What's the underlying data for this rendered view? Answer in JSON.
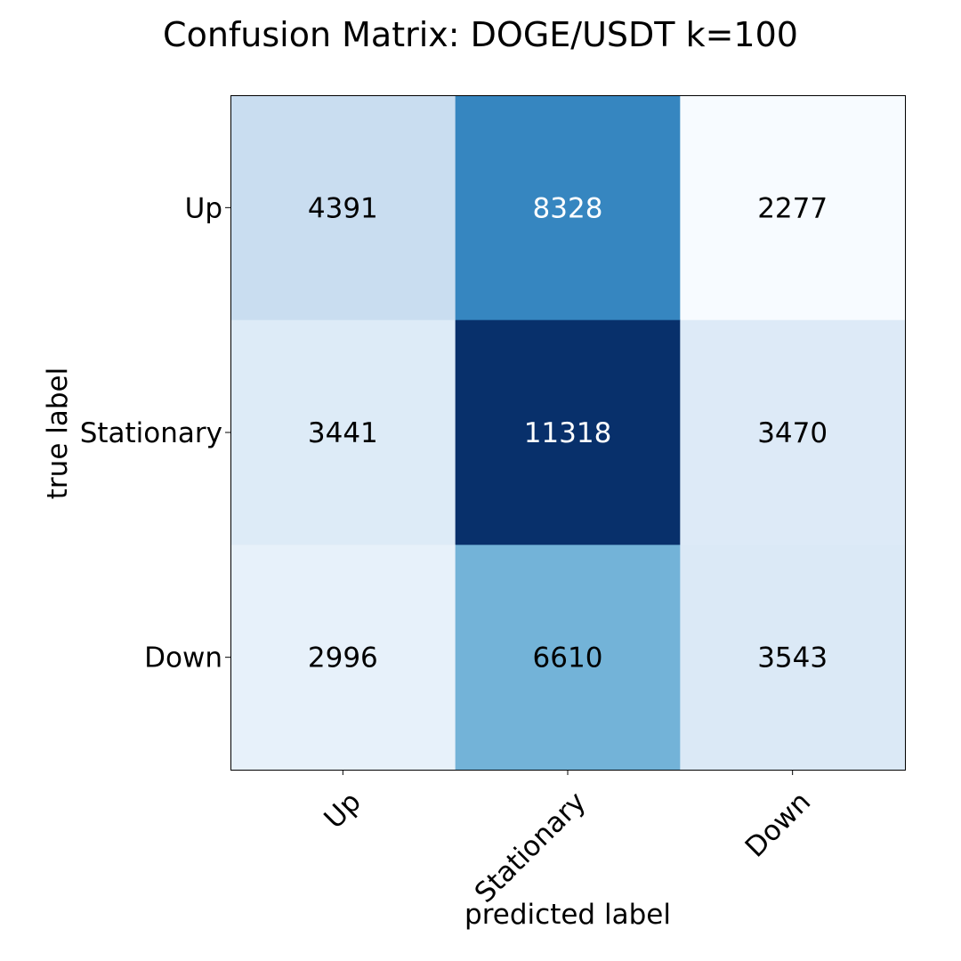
{
  "chart_data": {
    "type": "heatmap",
    "title": "Confusion Matrix: DOGE/USDT k=100",
    "xlabel": "predicted label",
    "ylabel": "true label",
    "x_categories": [
      "Up",
      "Stationary",
      "Down"
    ],
    "y_categories": [
      "Up",
      "Stationary",
      "Down"
    ],
    "values": [
      [
        4391,
        8328,
        2277
      ],
      [
        3441,
        11318,
        3470
      ],
      [
        2996,
        6610,
        3543
      ]
    ],
    "colormap": "Blues",
    "colorbar": false,
    "grid": false
  }
}
